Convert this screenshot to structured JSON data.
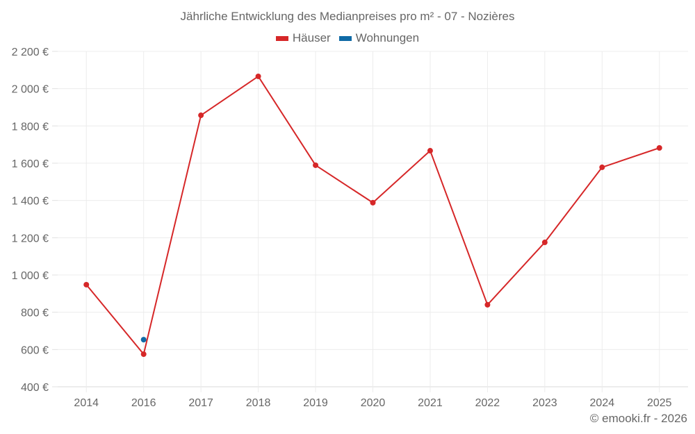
{
  "title": "Jährliche Entwicklung des Medianpreises pro m² - 07 - Nozières",
  "legend": [
    {
      "label": "Häuser",
      "color": "#d62728"
    },
    {
      "label": "Wohnungen",
      "color": "#0f6aa6"
    }
  ],
  "credit": "© emooki.fr - 2026",
  "chart_data": {
    "type": "line",
    "title": "Jährliche Entwicklung des Medianpreises pro m² - 07 - Nozières",
    "xlabel": "",
    "ylabel": "",
    "categories": [
      "2014",
      "2016",
      "2017",
      "2018",
      "2019",
      "2020",
      "2021",
      "2022",
      "2023",
      "2024",
      "2025"
    ],
    "series": [
      {
        "name": "Häuser",
        "color": "#d62728",
        "values": [
          948,
          575,
          1857,
          2066,
          1589,
          1388,
          1667,
          840,
          1175,
          1578,
          1682
        ]
      },
      {
        "name": "Wohnungen",
        "color": "#0f6aa6",
        "values": [
          null,
          653,
          null,
          null,
          null,
          null,
          null,
          null,
          null,
          null,
          null
        ]
      }
    ],
    "ylim": [
      400,
      2200
    ],
    "yticks": [
      400,
      600,
      800,
      1000,
      1200,
      1400,
      1600,
      1800,
      2000,
      2200
    ],
    "ytick_labels": [
      "400 €",
      "600 €",
      "800 €",
      "1 000 €",
      "1 200 €",
      "1 400 €",
      "1 600 €",
      "1 800 €",
      "2 000 €",
      "2 200 €"
    ],
    "grid": true,
    "legend_position": "top"
  }
}
